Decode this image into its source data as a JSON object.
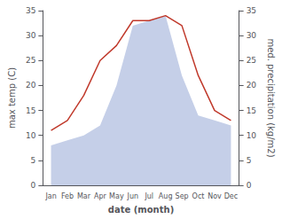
{
  "chart_data": {
    "type": "line",
    "xlabel": "date (month)",
    "ylabel": "max temp (C)",
    "y2label": "med. precipitation (kg/m2)",
    "categories": [
      "Jan",
      "Feb",
      "Mar",
      "Apr",
      "May",
      "Jun",
      "Jul",
      "Aug",
      "Sep",
      "Oct",
      "Nov",
      "Dec"
    ],
    "series": [
      {
        "type": "area",
        "color": "#c5cfe8",
        "values": [
          8,
          9,
          10,
          12,
          20,
          32,
          33,
          34,
          22,
          14,
          13,
          12
        ]
      },
      {
        "type": "line",
        "color": "#c0392b",
        "values": [
          11,
          13,
          18,
          25,
          28,
          33,
          33,
          34,
          32,
          22,
          15,
          13
        ]
      }
    ],
    "ylim": [
      0,
      35
    ],
    "yticks": [
      0,
      5,
      10,
      15,
      20,
      25,
      30,
      35
    ],
    "y2lim": [
      0,
      35
    ],
    "y2ticks": [
      0,
      5,
      10,
      15,
      20,
      25,
      30,
      35
    ],
    "grid": false
  }
}
